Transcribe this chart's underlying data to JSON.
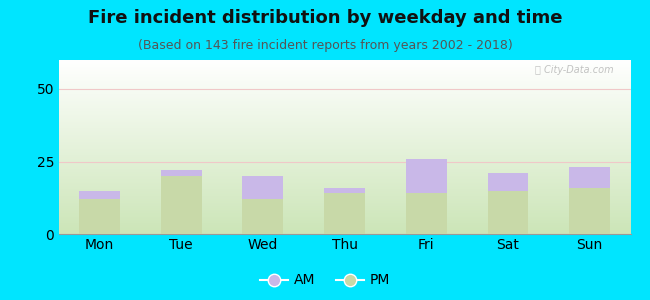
{
  "title": "Fire incident distribution by weekday and time",
  "subtitle": "(Based on 143 fire incident reports from years 2002 - 2018)",
  "categories": [
    "Mon",
    "Tue",
    "Wed",
    "Thu",
    "Fri",
    "Sat",
    "Sun"
  ],
  "pm_values": [
    12,
    20,
    12,
    14,
    14,
    15,
    16
  ],
  "am_values": [
    3,
    2,
    8,
    2,
    12,
    6,
    7
  ],
  "am_color": "#c9b8e8",
  "pm_color": "#c8d9a8",
  "background_outer": "#00e5ff",
  "background_plot": "#ddefc8",
  "ylim": [
    0,
    60
  ],
  "yticks": [
    0,
    25,
    50
  ],
  "legend_labels": [
    "AM",
    "PM"
  ],
  "title_fontsize": 13,
  "subtitle_fontsize": 9,
  "tick_fontsize": 10,
  "legend_fontsize": 10,
  "bar_width": 0.5
}
